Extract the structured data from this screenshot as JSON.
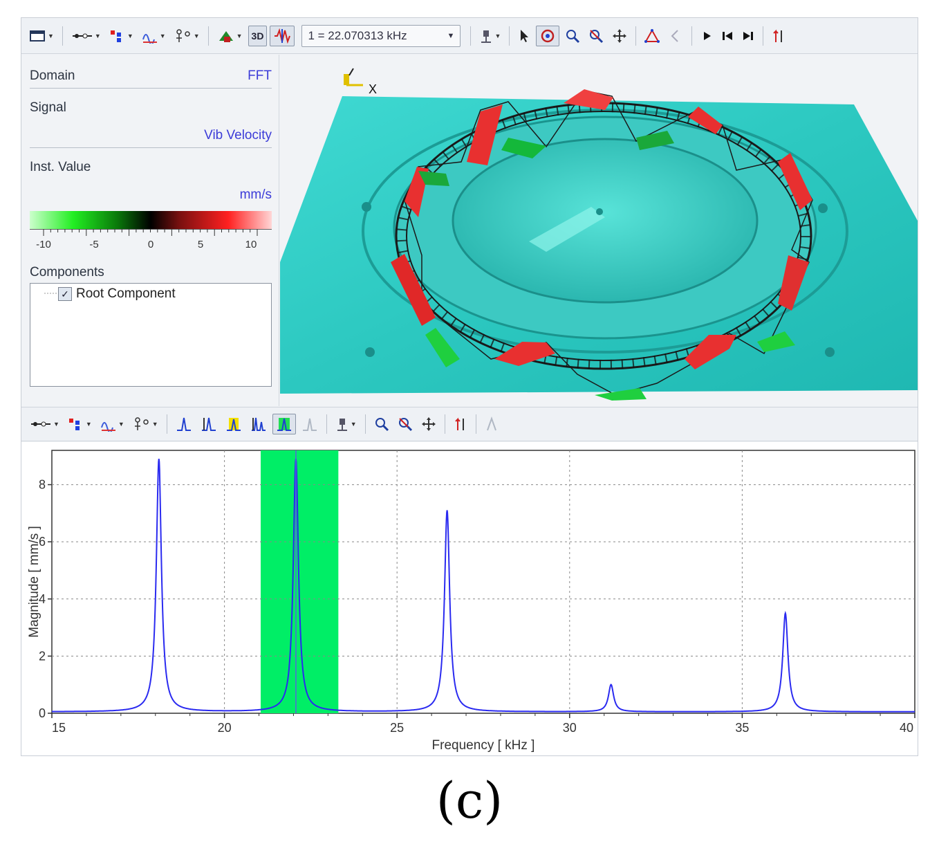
{
  "toolbar": {
    "freq_select_value": "1 = 22.070313 kHz",
    "view_3d_label": "3D"
  },
  "properties": {
    "domain_label": "Domain",
    "domain_value": "FFT",
    "signal_label": "Signal",
    "signal_value": "Vib Velocity",
    "inst_label": "Inst. Value",
    "unit_value": "mm/s",
    "colorbar_ticks": [
      "-10",
      "-5",
      "0",
      "5",
      "10"
    ],
    "components_label": "Components",
    "root_component": "Root Component",
    "root_checked": true
  },
  "view3d": {
    "axis_letter": "X"
  },
  "chart_data": {
    "type": "line",
    "xlabel": "Frequency [ kHz ]",
    "ylabel": "Magnitude [ mm/s ]",
    "x_ticks": [
      "15",
      "20",
      "25",
      "30",
      "35",
      "40"
    ],
    "y_ticks": [
      "0",
      "2",
      "4",
      "6",
      "8"
    ],
    "xlim": [
      15,
      40
    ],
    "ylim": [
      0,
      9.2
    ],
    "grid": true,
    "series": [
      {
        "peaks": [
          {
            "f": 18.1,
            "a": 8.9
          },
          {
            "f": 22.07,
            "a": 8.9
          },
          {
            "f": 26.45,
            "a": 7.1
          },
          {
            "f": 31.2,
            "a": 1.0
          },
          {
            "f": 36.25,
            "a": 3.5
          }
        ]
      }
    ],
    "highlight_band": [
      21.05,
      23.3
    ],
    "cursor_x": 22.07,
    "line_color": "#2a2af0",
    "band_color": "#00ee66"
  },
  "caption": "(c)"
}
